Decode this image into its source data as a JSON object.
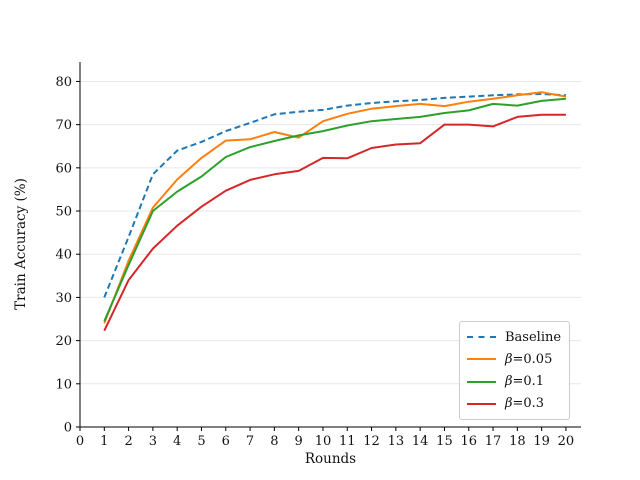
{
  "chart_data": {
    "type": "line",
    "title": "",
    "xlabel": "Rounds",
    "ylabel": "Train Accuracy (%)",
    "x": [
      1,
      2,
      3,
      4,
      5,
      6,
      7,
      8,
      9,
      10,
      11,
      12,
      13,
      14,
      15,
      16,
      17,
      18,
      19,
      20
    ],
    "x_ticks": [
      0,
      1,
      2,
      3,
      4,
      5,
      6,
      7,
      8,
      9,
      10,
      11,
      12,
      13,
      14,
      15,
      16,
      17,
      18,
      19,
      20
    ],
    "y_ticks": [
      0,
      10,
      20,
      30,
      40,
      50,
      60,
      70,
      80
    ],
    "xlim": [
      0,
      20.62
    ],
    "ylim": [
      0,
      84.5
    ],
    "grid": "horizontal",
    "legend_position": "lower right",
    "series": [
      {
        "name": "Baseline",
        "color": "#1f77b4",
        "dash": true,
        "values": [
          30,
          44,
          58.5,
          64,
          66,
          68.5,
          70.4,
          72.4,
          73,
          73.4,
          74.4,
          75,
          75.4,
          75.7,
          76.2,
          76.5,
          76.8,
          77,
          77.1,
          76.8
        ]
      },
      {
        "name": "β=0.05",
        "color": "#ff7f0e",
        "dash": false,
        "values": [
          24,
          38.5,
          50.8,
          57.3,
          62.3,
          66.3,
          66.6,
          68.3,
          67,
          70.8,
          72.5,
          73.7,
          74.3,
          74.8,
          74.3,
          75.3,
          76,
          76.8,
          77.5,
          76.5
        ]
      },
      {
        "name": "β=0.1",
        "color": "#2ca02c",
        "dash": false,
        "values": [
          24.5,
          37.5,
          50,
          54.5,
          58,
          62.5,
          64.8,
          66.2,
          67.5,
          68.5,
          69.8,
          70.8,
          71.3,
          71.8,
          72.7,
          73.3,
          74.8,
          74.4,
          75.5,
          76
        ]
      },
      {
        "name": "β=0.3",
        "color": "#d62728",
        "dash": false,
        "values": [
          22.3,
          34,
          41.3,
          46.6,
          51,
          54.7,
          57.2,
          58.5,
          59.3,
          62.3,
          62.2,
          64.6,
          65.4,
          65.7,
          70,
          70,
          69.6,
          71.8,
          72.3,
          72.3
        ]
      }
    ]
  },
  "legend": {
    "items": [
      {
        "symbol": "",
        "text": "Baseline",
        "color": "#1f77b4",
        "style": "dashed"
      },
      {
        "symbol": "β",
        "text": "=0.05",
        "color": "#ff7f0e",
        "style": "solid"
      },
      {
        "symbol": "β",
        "text": "=0.1",
        "color": "#2ca02c",
        "style": "solid"
      },
      {
        "symbol": "β",
        "text": "=0.3",
        "color": "#d62728",
        "style": "solid"
      }
    ]
  },
  "colors": {
    "background": "#ffffff",
    "gridline": "#e7e7e7",
    "axis": "#000000",
    "text": "#111111"
  }
}
